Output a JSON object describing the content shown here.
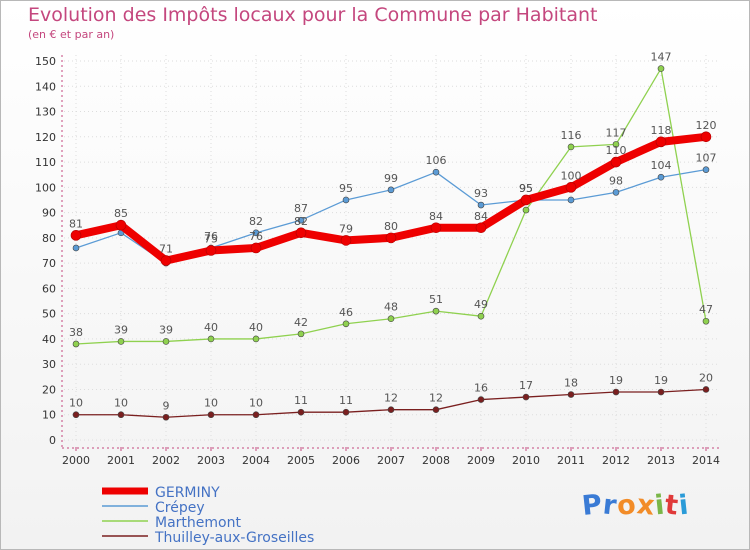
{
  "title": "Evolution des Impôts locaux pour la Commune par Habitant",
  "subtitle": "(en € et par an)",
  "logo": {
    "letters": [
      "P",
      "r",
      "o",
      "x",
      "i",
      "t",
      "i"
    ],
    "colors": [
      "#3a7bd5",
      "#3a7bd5",
      "#f28c28",
      "#f28c28",
      "#7ab648",
      "#e03a3a",
      "#2a9bd8"
    ]
  },
  "colors": {
    "title": "#c4477e",
    "axis": "#c4477e",
    "grid": "#dddddd",
    "frame": "#b8b8b8"
  },
  "chart_data": {
    "type": "line",
    "x": [
      "2000",
      "2001",
      "2002",
      "2003",
      "2004",
      "2005",
      "2006",
      "2007",
      "2008",
      "2009",
      "2010",
      "2011",
      "2012",
      "2013",
      "2014"
    ],
    "ylim": [
      0,
      150
    ],
    "yticks": [
      0,
      10,
      20,
      30,
      40,
      50,
      60,
      70,
      80,
      90,
      100,
      110,
      120,
      130,
      140,
      150
    ],
    "grid": true,
    "legend_position": "bottom-left",
    "series": [
      {
        "name": "Crépey",
        "color": "#5b9bd5",
        "values": [
          76,
          82,
          70,
          76,
          82,
          87,
          95,
          99,
          106,
          93,
          95,
          95,
          98,
          104,
          107
        ],
        "labels": [
          "",
          "",
          "",
          "76",
          "82",
          "87",
          "95",
          "99",
          "106",
          "93",
          "95",
          "",
          "98",
          "104",
          "107"
        ]
      },
      {
        "name": "Marthemont",
        "color": "#8fd14f",
        "values": [
          38,
          39,
          39,
          40,
          40,
          42,
          46,
          48,
          51,
          49,
          91,
          116,
          117,
          147,
          47
        ],
        "labels": [
          "38",
          "39",
          "39",
          "40",
          "40",
          "42",
          "46",
          "48",
          "51",
          "49",
          "",
          "116",
          "117",
          "147",
          "47"
        ]
      },
      {
        "name": "Thuilley-aux-Groseilles",
        "color": "#7a1f1f",
        "values": [
          10,
          10,
          9,
          10,
          10,
          11,
          11,
          12,
          12,
          16,
          17,
          18,
          19,
          19,
          20
        ],
        "labels": [
          "10",
          "10",
          "9",
          "10",
          "10",
          "11",
          "11",
          "12",
          "12",
          "16",
          "17",
          "18",
          "19",
          "19",
          "20"
        ]
      },
      {
        "name": "GERMINY",
        "color": "#ee0000",
        "values": [
          81,
          85,
          71,
          75,
          76,
          82,
          79,
          80,
          84,
          84,
          95,
          100,
          110,
          118,
          120
        ],
        "labels": [
          "81",
          "85",
          "71",
          "75",
          "76",
          "82",
          "79",
          "80",
          "84",
          "84",
          "95",
          "100",
          "110",
          "118",
          "120"
        ]
      }
    ]
  }
}
